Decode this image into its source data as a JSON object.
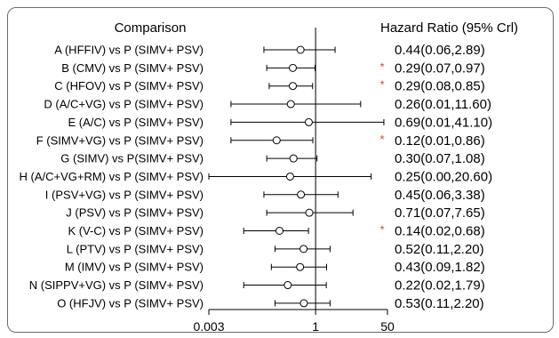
{
  "chart_data": {
    "type": "forest",
    "title": "Comparison",
    "value_header": "Hazard Ratio (95% Crl)",
    "x_scale": "log",
    "xlim": [
      0.003,
      50
    ],
    "x_ticks": [
      {
        "value": 0.003,
        "label": "0.003"
      },
      {
        "value": 1,
        "label": "1"
      },
      {
        "value": 50,
        "label": "50"
      }
    ],
    "reference_line": 1,
    "significance_color": "#e0403a",
    "rows": [
      {
        "label": "A (HFFIV) vs P (SIMV+ PSV)",
        "hr": 0.44,
        "lower": 0.06,
        "upper": 2.89,
        "text": "0.44(0.06,2.89)",
        "significant": false
      },
      {
        "label": "B (CMV) vs P (SIMV+ PSV)",
        "hr": 0.29,
        "lower": 0.07,
        "upper": 0.97,
        "text": "0.29(0.07,0.97)",
        "significant": true
      },
      {
        "label": "C (HFOV) vs P (SIMV+ PSV)",
        "hr": 0.29,
        "lower": 0.08,
        "upper": 0.85,
        "text": "0.29(0.08,0.85)",
        "significant": true
      },
      {
        "label": "D (A/C+VG) vs P (SIMV+ PSV)",
        "hr": 0.26,
        "lower": 0.01,
        "upper": 11.6,
        "text": "0.26(0.01,11.60)",
        "significant": false
      },
      {
        "label": "E (A/C) vs P (SIMV+ PSV)",
        "hr": 0.69,
        "lower": 0.01,
        "upper": 41.1,
        "text": "0.69(0.01,41.10)",
        "significant": false
      },
      {
        "label": "F (SIMV+VG) vs P (SIMV+ PSV)",
        "hr": 0.12,
        "lower": 0.01,
        "upper": 0.86,
        "text": "0.12(0.01,0.86)",
        "significant": true
      },
      {
        "label": "G (SIMV) vs P(SIMV+ PSV)",
        "hr": 0.3,
        "lower": 0.07,
        "upper": 1.08,
        "text": "0.30(0.07,1.08)",
        "significant": false
      },
      {
        "label": "H (A/C+VG+RM) vs P (SIMV+ PSV)",
        "hr": 0.25,
        "lower": 0.003,
        "upper": 20.6,
        "text": "0.25(0.00,20.60)",
        "significant": false
      },
      {
        "label": "I (PSV+VG) vs P (SIMV+ PSV)",
        "hr": 0.45,
        "lower": 0.06,
        "upper": 3.38,
        "text": "0.45(0.06,3.38)",
        "significant": false
      },
      {
        "label": "J (PSV) vs P (SIMV+ PSV)",
        "hr": 0.71,
        "lower": 0.07,
        "upper": 7.65,
        "text": "0.71(0.07,7.65)",
        "significant": false
      },
      {
        "label": "K (V-C) vs P (SIMV+ PSV)",
        "hr": 0.14,
        "lower": 0.02,
        "upper": 0.68,
        "text": "0.14(0.02,0.68)",
        "significant": true
      },
      {
        "label": "L (PTV) vs P (SIMV+ PSV)",
        "hr": 0.52,
        "lower": 0.11,
        "upper": 2.2,
        "text": "0.52(0.11,2.20)",
        "significant": false
      },
      {
        "label": "M (IMV) vs P (SIMV+ PSV)",
        "hr": 0.43,
        "lower": 0.09,
        "upper": 1.82,
        "text": "0.43(0.09,1.82)",
        "significant": false
      },
      {
        "label": "N (SIPPV+VG) vs P (SIMV+ PSV)",
        "hr": 0.22,
        "lower": 0.02,
        "upper": 1.79,
        "text": "0.22(0.02,1.79)",
        "significant": false
      },
      {
        "label": "O (HFJV) vs P (SIMV+ PSV)",
        "hr": 0.53,
        "lower": 0.11,
        "upper": 2.2,
        "text": "0.53(0.11,2.20)",
        "significant": false
      }
    ]
  }
}
